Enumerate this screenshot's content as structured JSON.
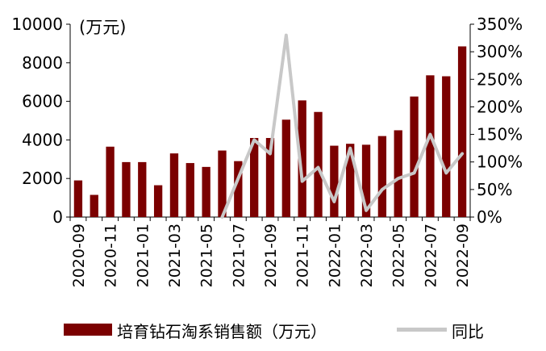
{
  "chart_data": {
    "type": "bar",
    "unit_label": "(万元)",
    "x": [
      "2020-09",
      "2020-10",
      "2020-11",
      "2020-12",
      "2021-01",
      "2021-02",
      "2021-03",
      "2021-04",
      "2021-05",
      "2021-06",
      "2021-07",
      "2021-08",
      "2021-09",
      "2021-10",
      "2021-11",
      "2021-12",
      "2022-01",
      "2022-02",
      "2022-03",
      "2022-04",
      "2022-05",
      "2022-06",
      "2022-07",
      "2022-08",
      "2022-09"
    ],
    "x_tick_labels": [
      "2020-09",
      "2020-11",
      "2021-01",
      "2021-03",
      "2021-05",
      "2021-07",
      "2021-09",
      "2021-11",
      "2022-01",
      "2022-03",
      "2022-05",
      "2022-07",
      "2022-09"
    ],
    "series": [
      {
        "name": "培育钻石淘系销售额（万元）",
        "type": "bar",
        "axis": "left",
        "color": "#7b0000",
        "values": [
          1900,
          1150,
          3650,
          2850,
          2850,
          1650,
          3300,
          2800,
          2600,
          3450,
          2900,
          4100,
          4100,
          5050,
          6050,
          5450,
          3700,
          3800,
          3750,
          4200,
          4500,
          6250,
          7350,
          7300,
          8850
        ]
      },
      {
        "name": "同比",
        "type": "line",
        "axis": "right",
        "color": "#c8c8c8",
        "values": [
          null,
          null,
          null,
          null,
          null,
          null,
          null,
          null,
          null,
          0,
          70,
          140,
          115,
          330,
          65,
          90,
          28,
          125,
          12,
          50,
          70,
          80,
          150,
          80,
          115
        ]
      }
    ],
    "y_left": {
      "ylim": [
        0,
        10000
      ],
      "ticks": [
        0,
        2000,
        4000,
        6000,
        8000,
        10000
      ]
    },
    "y_right": {
      "ylim": [
        0,
        350
      ],
      "ticks": [
        0,
        50,
        100,
        150,
        200,
        250,
        300,
        350
      ],
      "tick_suffix": "%"
    },
    "grid": false,
    "legend": {
      "position": "bottom"
    }
  },
  "legend": {
    "bar_label": "培育钻石淘系销售额（万元）",
    "line_label": "同比"
  }
}
